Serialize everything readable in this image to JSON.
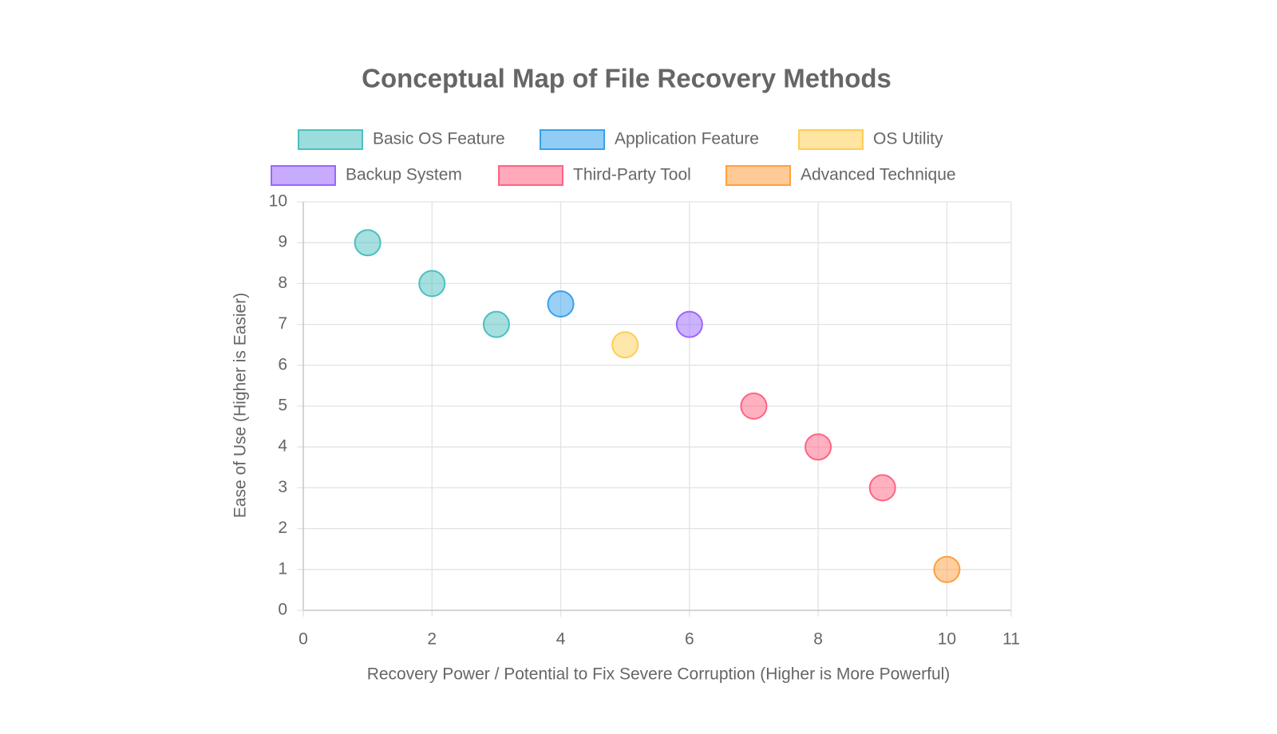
{
  "chart_data": {
    "type": "scatter",
    "title": "Conceptual Map of File Recovery Methods",
    "x_label": "Recovery Power / Potential to Fix Severe Corruption (Higher is More Powerful)",
    "y_label": "Ease of Use (Higher is Easier)",
    "series": [
      {
        "name": "Basic OS Feature",
        "color": "#4bc0c0",
        "x": [
          1,
          2,
          3
        ],
        "values": [
          9,
          8,
          7
        ]
      },
      {
        "name": "Application Feature",
        "color": "#36a2eb",
        "x": [
          4
        ],
        "values": [
          7.5
        ]
      },
      {
        "name": "OS Utility",
        "color": "#ffcd56",
        "x": [
          5
        ],
        "values": [
          6.5
        ]
      },
      {
        "name": "Backup System",
        "color": "#9966ff",
        "x": [
          6
        ],
        "values": [
          7
        ]
      },
      {
        "name": "Third-Party Tool",
        "color": "#ff6384",
        "x": [
          7,
          8,
          9
        ],
        "values": [
          5,
          4,
          3
        ]
      },
      {
        "name": "Advanced Technique",
        "color": "#ff9f40",
        "x": [
          10
        ],
        "values": [
          1
        ]
      }
    ],
    "xlim": [
      0,
      11
    ],
    "xticks": [
      0,
      2,
      4,
      6,
      8,
      10,
      11
    ],
    "ylim": [
      0,
      10
    ],
    "yticks": [
      0,
      1,
      2,
      3,
      4,
      5,
      6,
      7,
      8,
      9,
      10
    ],
    "grid": true
  }
}
